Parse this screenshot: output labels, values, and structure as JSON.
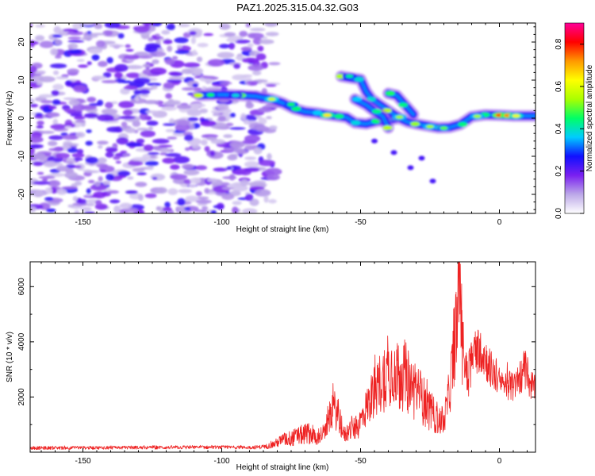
{
  "title": "PAZ1.2025.315.04.32.G03",
  "chart_data": [
    {
      "type": "heatmap",
      "xlabel": "Height of straight line (km)",
      "ylabel": "Frequency (Hz)",
      "xlim": [
        -169,
        13
      ],
      "ylim": [
        -25,
        25
      ],
      "xticks": [
        -150,
        -100,
        -50,
        0
      ],
      "xtick_labels": [
        "-150",
        "-100",
        "-50",
        "0"
      ],
      "yticks": [
        -20,
        -10,
        0,
        10,
        20
      ],
      "ytick_labels": [
        "-20",
        "-10",
        "0",
        "10",
        "20"
      ],
      "noise_region_x": [
        -169,
        -81
      ],
      "signal_tracks": [
        {
          "name": "main",
          "points": [
            [
              -108,
              6
            ],
            [
              -100,
              6.2
            ],
            [
              -93,
              6
            ],
            [
              -88,
              5.8
            ],
            [
              -82,
              5
            ],
            [
              -78,
              4
            ],
            [
              -74,
              2.5
            ],
            [
              -70,
              1.7
            ],
            [
              -66,
              1.4
            ],
            [
              -62,
              0.9
            ],
            [
              -58,
              0.5
            ],
            [
              -55,
              0.2
            ],
            [
              -52,
              -1.2
            ],
            [
              -48,
              -1.5
            ],
            [
              -44,
              -0.8
            ],
            [
              -40,
              -0.5
            ],
            [
              -36,
              0
            ],
            [
              -33,
              -1
            ],
            [
              -30,
              -1.5
            ],
            [
              -26,
              -2
            ],
            [
              -22,
              -2.5
            ],
            [
              -18,
              -2.4
            ],
            [
              -14,
              -1.6
            ],
            [
              -10,
              0.4
            ],
            [
              -5,
              0.9
            ],
            [
              0,
              0.8
            ],
            [
              5,
              0.6
            ],
            [
              13,
              0.6
            ]
          ]
        },
        {
          "name": "upper",
          "points": [
            [
              -57,
              11
            ],
            [
              -53,
              10.5
            ],
            [
              -50,
              10.2
            ],
            [
              -48,
              7
            ],
            [
              -46,
              5
            ],
            [
              -43,
              3.5
            ],
            [
              -40,
              2
            ],
            [
              -37,
              0.5
            ]
          ]
        },
        {
          "name": "branch",
          "points": [
            [
              -40,
              6.5
            ],
            [
              -37,
              6
            ],
            [
              -34,
              3.5
            ],
            [
              -31,
              1
            ]
          ]
        },
        {
          "name": "lower",
          "points": [
            [
              -52,
              5
            ],
            [
              -48,
              3.5
            ],
            [
              -45,
              1.8
            ],
            [
              -42,
              0.5
            ],
            [
              -40,
              -2.5
            ]
          ]
        }
      ],
      "signal_blobs": [
        [
          -82,
          5,
          0.75
        ],
        [
          -75,
          3.6,
          0.6
        ],
        [
          -62,
          0.8,
          0.85
        ],
        [
          -54,
          11,
          0.55
        ],
        [
          -36,
          0.3,
          0.7
        ],
        [
          -25,
          -2.2,
          0.7
        ],
        [
          -20,
          -2.6,
          0.65
        ],
        [
          0,
          0.8,
          1.0
        ],
        [
          3,
          0.7,
          0.95
        ],
        [
          6,
          0.6,
          0.8
        ],
        [
          -8,
          0.5,
          0.7
        ],
        [
          -104,
          6.1,
          0.6
        ],
        [
          -95,
          6,
          0.5
        ]
      ],
      "isolated_points": [
        [
          -24,
          -16.5
        ],
        [
          -28,
          -10.5
        ],
        [
          -32,
          -13
        ],
        [
          -38,
          -9
        ],
        [
          -45,
          -6
        ]
      ],
      "colorbar": {
        "label": "Normalized spectral amplitude",
        "range": [
          0,
          0.9
        ],
        "ticks": [
          0.0,
          0.2,
          0.4,
          0.6,
          0.8
        ],
        "tick_labels": [
          "0.0",
          "0.2",
          "0.4",
          "0.6",
          "0.8"
        ],
        "colors": [
          "#ffffff",
          "#bca8e8",
          "#7a20f0",
          "#1010ff",
          "#00ccff",
          "#00ff66",
          "#aaff00",
          "#ffff00",
          "#ff9900",
          "#ff0000",
          "#ff0099"
        ]
      }
    },
    {
      "type": "line",
      "xlabel": "Height of straight line (km)",
      "ylabel": "SNR (10 * v/v)",
      "xlim": [
        -169,
        13
      ],
      "ylim": [
        0,
        6900
      ],
      "xticks": [
        -150,
        -100,
        -50,
        0
      ],
      "xtick_labels": [
        "-150",
        "-100",
        "-50",
        "0"
      ],
      "yticks": [
        2000,
        4000,
        6000
      ],
      "ytick_labels": [
        "2000",
        "4000",
        "6000"
      ],
      "color": "#ee2222",
      "envelope": [
        [
          -169,
          150,
          60
        ],
        [
          -150,
          160,
          60
        ],
        [
          -120,
          170,
          60
        ],
        [
          -100,
          180,
          60
        ],
        [
          -90,
          170,
          60
        ],
        [
          -84,
          200,
          80
        ],
        [
          -81,
          300,
          150
        ],
        [
          -78,
          450,
          250
        ],
        [
          -75,
          500,
          300
        ],
        [
          -72,
          600,
          350
        ],
        [
          -69,
          700,
          400
        ],
        [
          -66,
          550,
          300
        ],
        [
          -63,
          700,
          350
        ],
        [
          -60,
          1600,
          700
        ],
        [
          -58,
          1400,
          700
        ],
        [
          -56,
          600,
          300
        ],
        [
          -54,
          800,
          400
        ],
        [
          -51,
          900,
          450
        ],
        [
          -48,
          1600,
          700
        ],
        [
          -46,
          2000,
          900
        ],
        [
          -44,
          2400,
          1100
        ],
        [
          -42,
          2600,
          1200
        ],
        [
          -40,
          2900,
          1300
        ],
        [
          -38,
          3100,
          1400
        ],
        [
          -36,
          2700,
          1300
        ],
        [
          -34,
          2800,
          1300
        ],
        [
          -32,
          2400,
          1200
        ],
        [
          -30,
          2200,
          1100
        ],
        [
          -28,
          2000,
          1000
        ],
        [
          -26,
          1600,
          800
        ],
        [
          -24,
          1400,
          700
        ],
        [
          -22,
          1200,
          600
        ],
        [
          -20,
          1100,
          500
        ],
        [
          -18,
          2200,
          900
        ],
        [
          -16.5,
          3500,
          1500
        ],
        [
          -15,
          5500,
          1800
        ],
        [
          -14.5,
          6300,
          1800
        ],
        [
          -13.5,
          4000,
          1500
        ],
        [
          -12.5,
          3200,
          1200
        ],
        [
          -11,
          3000,
          1000
        ],
        [
          -9,
          3600,
          900
        ],
        [
          -7,
          3800,
          900
        ],
        [
          -5,
          3400,
          800
        ],
        [
          -3,
          3000,
          700
        ],
        [
          -1,
          2700,
          600
        ],
        [
          1,
          2400,
          500
        ],
        [
          3,
          2500,
          600
        ],
        [
          5,
          2300,
          500
        ],
        [
          7,
          2600,
          600
        ],
        [
          9,
          3000,
          700
        ],
        [
          11,
          2500,
          600
        ],
        [
          13,
          2300,
          500
        ]
      ],
      "spikes": [
        [
          -14.9,
          6750
        ],
        [
          -15.6,
          5800
        ],
        [
          -13.6,
          6100
        ],
        [
          -8.5,
          4050
        ],
        [
          9.6,
          3250
        ],
        [
          -40.3,
          3150
        ],
        [
          -34.2,
          3000
        ]
      ]
    }
  ]
}
